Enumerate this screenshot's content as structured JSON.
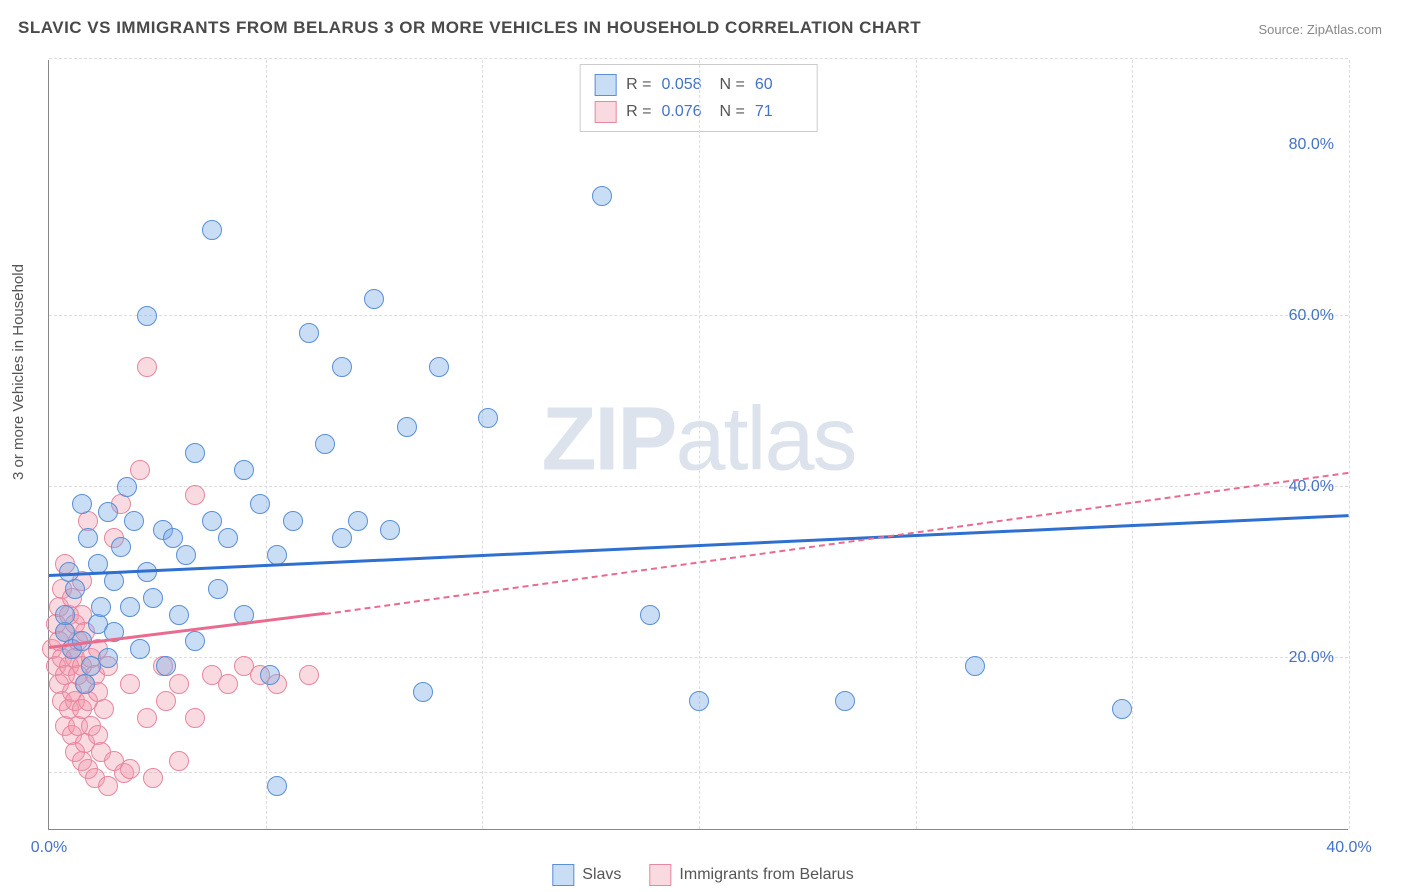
{
  "title": "SLAVIC VS IMMIGRANTS FROM BELARUS 3 OR MORE VEHICLES IN HOUSEHOLD CORRELATION CHART",
  "source": "Source: ZipAtlas.com",
  "ylabel": "3 or more Vehicles in Household",
  "watermark": "ZIPatlas",
  "colors": {
    "blue_fill": "rgba(120,170,230,0.40)",
    "blue_stroke": "#5b8fd6",
    "pink_fill": "rgba(240,150,170,0.35)",
    "pink_stroke": "#e6889f",
    "blue_line": "#2e6fd0",
    "pink_line": "#e96b8f",
    "axis_label": "#4472c4",
    "grid": "#dddddd"
  },
  "chart": {
    "type": "scatter",
    "xlim": [
      0,
      40
    ],
    "ylim": [
      0,
      90
    ],
    "xticks": [
      {
        "v": 0,
        "label": "0.0%"
      },
      {
        "v": 40,
        "label": "40.0%"
      }
    ],
    "xgrids": [
      6.67,
      13.33,
      20,
      26.67,
      33.33,
      40
    ],
    "yticks": [
      {
        "v": 20,
        "label": "20.0%"
      },
      {
        "v": 40,
        "label": "40.0%"
      },
      {
        "v": 60,
        "label": "60.0%"
      },
      {
        "v": 80,
        "label": "80.0%"
      }
    ],
    "ygrids": [
      6.5,
      20,
      40,
      60,
      90
    ],
    "legend_stats": [
      {
        "series": "slavs",
        "R": "0.058",
        "N": "60"
      },
      {
        "series": "belarus",
        "R": "0.076",
        "N": "71"
      }
    ],
    "bottom_legend": [
      {
        "series": "slavs",
        "label": "Slavs"
      },
      {
        "series": "belarus",
        "label": "Immigrants from Belarus"
      }
    ],
    "trend_lines": [
      {
        "series": "slavs",
        "x1": 0,
        "y1": 29.5,
        "x2": 40,
        "y2": 36.5,
        "style": "solid"
      },
      {
        "series": "belarus",
        "x1": 0,
        "y1": 21,
        "x2": 8.5,
        "y2": 25,
        "style": "solid"
      },
      {
        "series": "belarus",
        "x1": 8.5,
        "y1": 25,
        "x2": 40,
        "y2": 41.5,
        "style": "dashed"
      }
    ],
    "points": {
      "slavs": [
        [
          0.5,
          23
        ],
        [
          0.5,
          25
        ],
        [
          0.6,
          30
        ],
        [
          0.7,
          21
        ],
        [
          0.8,
          28
        ],
        [
          1.0,
          22
        ],
        [
          1.0,
          38
        ],
        [
          1.1,
          17
        ],
        [
          1.2,
          34
        ],
        [
          1.3,
          19
        ],
        [
          1.5,
          31
        ],
        [
          1.5,
          24
        ],
        [
          1.6,
          26
        ],
        [
          1.8,
          20
        ],
        [
          1.8,
          37
        ],
        [
          2.0,
          29
        ],
        [
          2.0,
          23
        ],
        [
          2.2,
          33
        ],
        [
          2.4,
          40
        ],
        [
          2.5,
          26
        ],
        [
          2.6,
          36
        ],
        [
          2.8,
          21
        ],
        [
          3.0,
          30
        ],
        [
          3.0,
          60
        ],
        [
          3.2,
          27
        ],
        [
          3.5,
          35
        ],
        [
          3.6,
          19
        ],
        [
          3.8,
          34
        ],
        [
          4.0,
          25
        ],
        [
          4.2,
          32
        ],
        [
          4.5,
          44
        ],
        [
          4.5,
          22
        ],
        [
          5.0,
          70
        ],
        [
          5.0,
          36
        ],
        [
          5.2,
          28
        ],
        [
          5.5,
          34
        ],
        [
          6.0,
          25
        ],
        [
          6.0,
          42
        ],
        [
          6.5,
          38
        ],
        [
          6.8,
          18
        ],
        [
          7.0,
          32
        ],
        [
          7.0,
          5
        ],
        [
          7.5,
          36
        ],
        [
          8.0,
          58
        ],
        [
          8.5,
          45
        ],
        [
          9.0,
          54
        ],
        [
          9.0,
          34
        ],
        [
          9.5,
          36
        ],
        [
          10.0,
          62
        ],
        [
          10.5,
          35
        ],
        [
          11.0,
          47
        ],
        [
          11.5,
          16
        ],
        [
          12.0,
          54
        ],
        [
          13.5,
          48
        ],
        [
          17.0,
          74
        ],
        [
          18.5,
          25
        ],
        [
          20.0,
          15
        ],
        [
          24.5,
          15
        ],
        [
          28.5,
          19
        ],
        [
          33.0,
          14
        ]
      ],
      "belarus": [
        [
          0.1,
          21
        ],
        [
          0.2,
          19
        ],
        [
          0.2,
          24
        ],
        [
          0.3,
          17
        ],
        [
          0.3,
          22
        ],
        [
          0.3,
          26
        ],
        [
          0.4,
          15
        ],
        [
          0.4,
          20
        ],
        [
          0.4,
          28
        ],
        [
          0.5,
          12
        ],
        [
          0.5,
          18
        ],
        [
          0.5,
          23
        ],
        [
          0.5,
          31
        ],
        [
          0.6,
          14
        ],
        [
          0.6,
          19
        ],
        [
          0.6,
          25
        ],
        [
          0.7,
          11
        ],
        [
          0.7,
          16
        ],
        [
          0.7,
          21
        ],
        [
          0.7,
          27
        ],
        [
          0.8,
          9
        ],
        [
          0.8,
          15
        ],
        [
          0.8,
          20
        ],
        [
          0.8,
          24
        ],
        [
          0.9,
          12
        ],
        [
          0.9,
          18
        ],
        [
          0.9,
          22
        ],
        [
          1.0,
          8
        ],
        [
          1.0,
          14
        ],
        [
          1.0,
          19
        ],
        [
          1.0,
          25
        ],
        [
          1.0,
          29
        ],
        [
          1.1,
          10
        ],
        [
          1.1,
          17
        ],
        [
          1.1,
          23
        ],
        [
          1.2,
          7
        ],
        [
          1.2,
          15
        ],
        [
          1.2,
          36
        ],
        [
          1.3,
          12
        ],
        [
          1.3,
          20
        ],
        [
          1.4,
          6
        ],
        [
          1.4,
          18
        ],
        [
          1.5,
          11
        ],
        [
          1.5,
          16
        ],
        [
          1.5,
          21
        ],
        [
          1.6,
          9
        ],
        [
          1.7,
          14
        ],
        [
          1.8,
          5
        ],
        [
          1.8,
          19
        ],
        [
          2.0,
          34
        ],
        [
          2.0,
          8
        ],
        [
          2.2,
          38
        ],
        [
          2.3,
          6.5
        ],
        [
          2.5,
          17
        ],
        [
          2.5,
          7
        ],
        [
          2.8,
          42
        ],
        [
          3.0,
          13
        ],
        [
          3.0,
          54
        ],
        [
          3.2,
          6
        ],
        [
          3.5,
          19
        ],
        [
          3.6,
          15
        ],
        [
          4.0,
          8
        ],
        [
          4.0,
          17
        ],
        [
          4.5,
          13
        ],
        [
          4.5,
          39
        ],
        [
          5.0,
          18
        ],
        [
          5.5,
          17
        ],
        [
          6.0,
          19
        ],
        [
          6.5,
          18
        ],
        [
          7.0,
          17
        ],
        [
          8.0,
          18
        ]
      ]
    }
  }
}
